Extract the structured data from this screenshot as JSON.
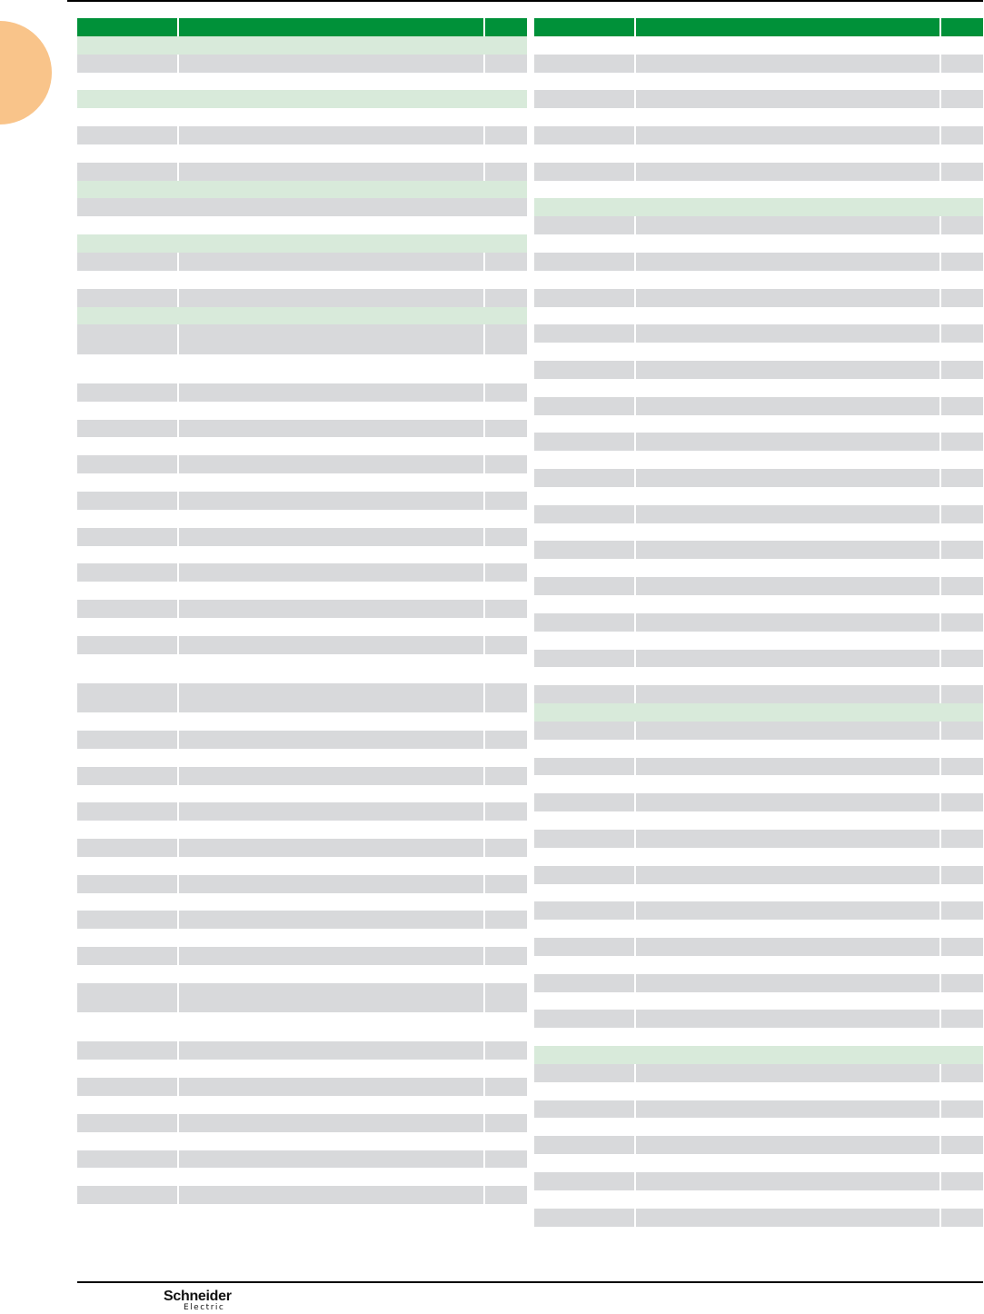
{
  "colors": {
    "header": "#009139",
    "section": "#d8eada",
    "row": "#d8d9db",
    "tab_marker": "#f9c48a"
  },
  "footer": {
    "logo_line1": "Schneider",
    "logo_line2": "Electric"
  },
  "tables": {
    "left": {
      "rows": [
        "s",
        "g",
        "w",
        "s",
        "w",
        "g",
        "w",
        "g",
        "s",
        "gs",
        "w",
        "s",
        "g",
        "w",
        "g",
        "s",
        "G",
        "W",
        "g",
        "w",
        "g",
        "w",
        "g",
        "w",
        "g",
        "w",
        "g",
        "w",
        "g",
        "w",
        "g",
        "w",
        "g",
        "W",
        "G",
        "w",
        "g",
        "w",
        "g",
        "w",
        "g",
        "w",
        "g",
        "w",
        "g",
        "w",
        "g",
        "w",
        "g",
        "w",
        "G",
        "W",
        "g",
        "w",
        "g",
        "w",
        "g",
        "w",
        "g",
        "w",
        "g"
      ]
    },
    "right": {
      "rows": [
        "w",
        "g",
        "w",
        "g",
        "w",
        "g",
        "w",
        "g",
        "w",
        "s",
        "g",
        "w",
        "g",
        "w",
        "g",
        "w",
        "g",
        "w",
        "g",
        "w",
        "g",
        "w",
        "g",
        "w",
        "g",
        "w",
        "g",
        "w",
        "g",
        "w",
        "g",
        "w",
        "g",
        "w",
        "g",
        "w",
        "g",
        "s",
        "g",
        "w",
        "g",
        "w",
        "g",
        "w",
        "g",
        "w",
        "g",
        "w",
        "g",
        "w",
        "g",
        "w",
        "g",
        "w",
        "g",
        "w",
        "s",
        "g",
        "w",
        "g",
        "w",
        "g",
        "w",
        "g",
        "w",
        "g"
      ]
    }
  }
}
